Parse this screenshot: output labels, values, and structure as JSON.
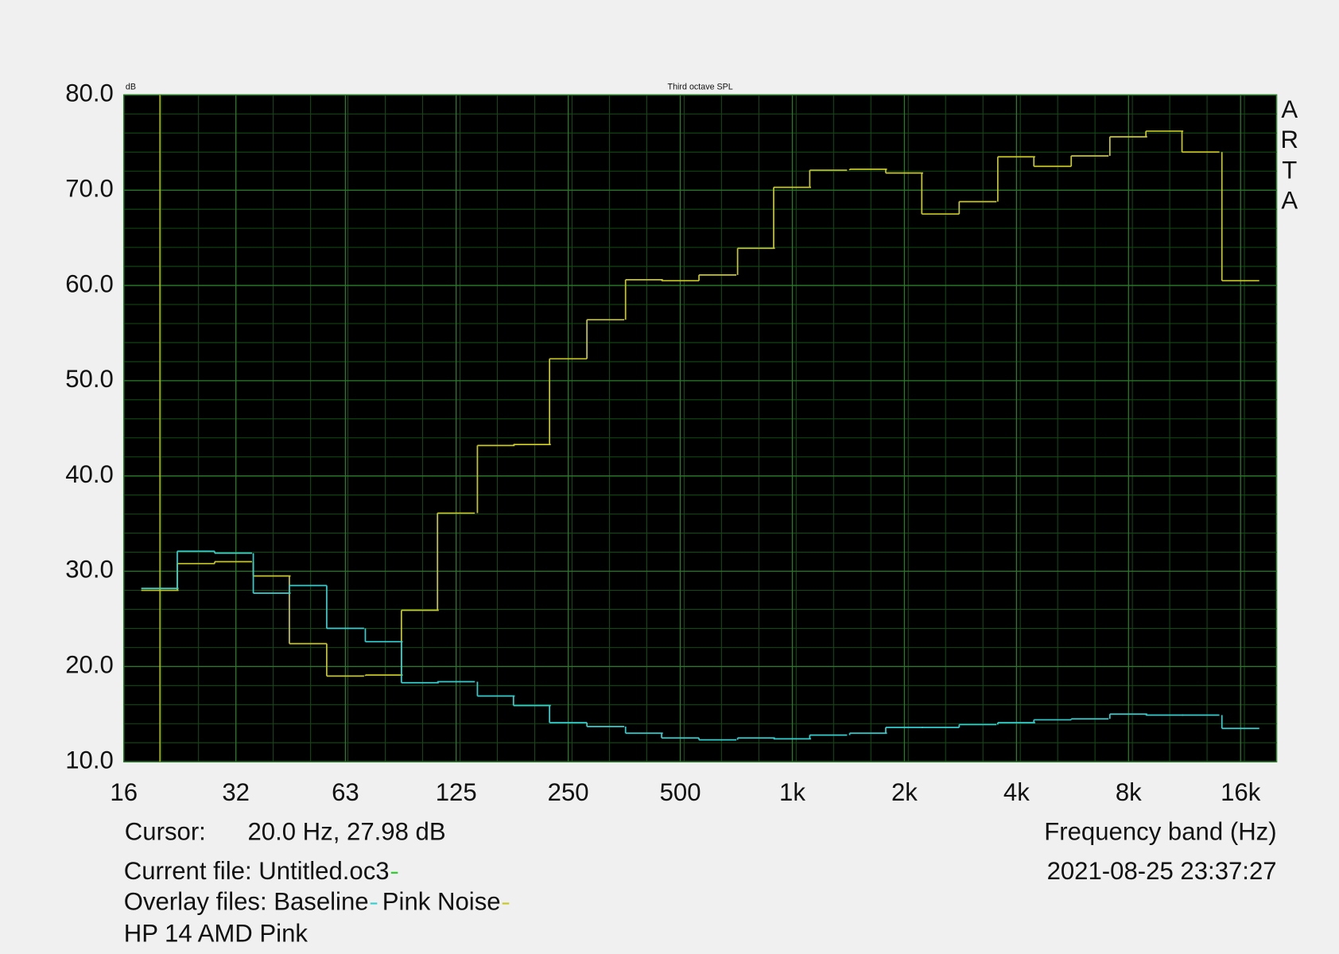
{
  "chart_data": {
    "type": "step",
    "title": "Third octave SPL",
    "y_unit": "dB",
    "brand": "ARTA",
    "x_label": "Frequency band (Hz)",
    "timestamp": "2021-08-25  23:37:27",
    "cursor": {
      "label": "Cursor:",
      "text": "20.0 Hz, 27.98 dB",
      "x": 20,
      "color": "#c8c820"
    },
    "current_file": {
      "text": "Current file: Untitled.oc3",
      "color": "#22cc22"
    },
    "overlay_label": "Overlay files:",
    "note": "HP 14 AMD Pink",
    "x_scale": "log",
    "xlim": [
      16,
      20000
    ],
    "xticks": [
      16,
      32,
      63,
      125,
      250,
      500,
      {
        "value": 1000,
        "label": "1k"
      },
      {
        "value": 2000,
        "label": "2k"
      },
      {
        "value": 4000,
        "label": "4k"
      },
      {
        "value": 8000,
        "label": "8k"
      },
      {
        "value": 16000,
        "label": "16k"
      }
    ],
    "ylim": [
      10,
      80
    ],
    "yticks": [
      {
        "value": 10,
        "label": "10.0"
      },
      {
        "value": 20,
        "label": "20.0"
      },
      {
        "value": 30,
        "label": "30.0"
      },
      {
        "value": 40,
        "label": "40.0"
      },
      {
        "value": 50,
        "label": "50.0"
      },
      {
        "value": 60,
        "label": "60.0"
      },
      {
        "value": 70,
        "label": "70.0"
      },
      {
        "value": 80,
        "label": "80.0"
      }
    ],
    "grid": true,
    "minor_grid": true,
    "x": [
      20,
      25,
      31.5,
      40,
      50,
      63,
      80,
      100,
      125,
      160,
      200,
      250,
      315,
      400,
      500,
      630,
      800,
      1000,
      1250,
      1600,
      2000,
      2500,
      3150,
      4000,
      5000,
      6300,
      8000,
      10000,
      12500,
      16000
    ],
    "series": [
      {
        "name": "Baseline",
        "color": "#30d0d0",
        "values": [
          28.2,
          32.1,
          31.9,
          27.7,
          28.5,
          24.0,
          22.6,
          18.3,
          18.4,
          16.9,
          15.9,
          14.1,
          13.7,
          13.0,
          12.5,
          12.3,
          12.5,
          12.4,
          12.8,
          13.0,
          13.6,
          13.6,
          13.9,
          14.1,
          14.4,
          14.5,
          15.0,
          14.9,
          14.9,
          13.5
        ]
      },
      {
        "name": "Pink Noise",
        "color": "#c8c820",
        "values": [
          28.0,
          30.8,
          31.0,
          29.5,
          22.4,
          19.0,
          19.1,
          25.9,
          36.1,
          43.2,
          43.3,
          52.3,
          56.4,
          60.6,
          60.5,
          61.1,
          63.9,
          70.3,
          72.1,
          72.2,
          71.8,
          67.5,
          68.8,
          73.5,
          72.5,
          73.6,
          75.6,
          76.2,
          74.0,
          60.5
        ]
      }
    ]
  }
}
